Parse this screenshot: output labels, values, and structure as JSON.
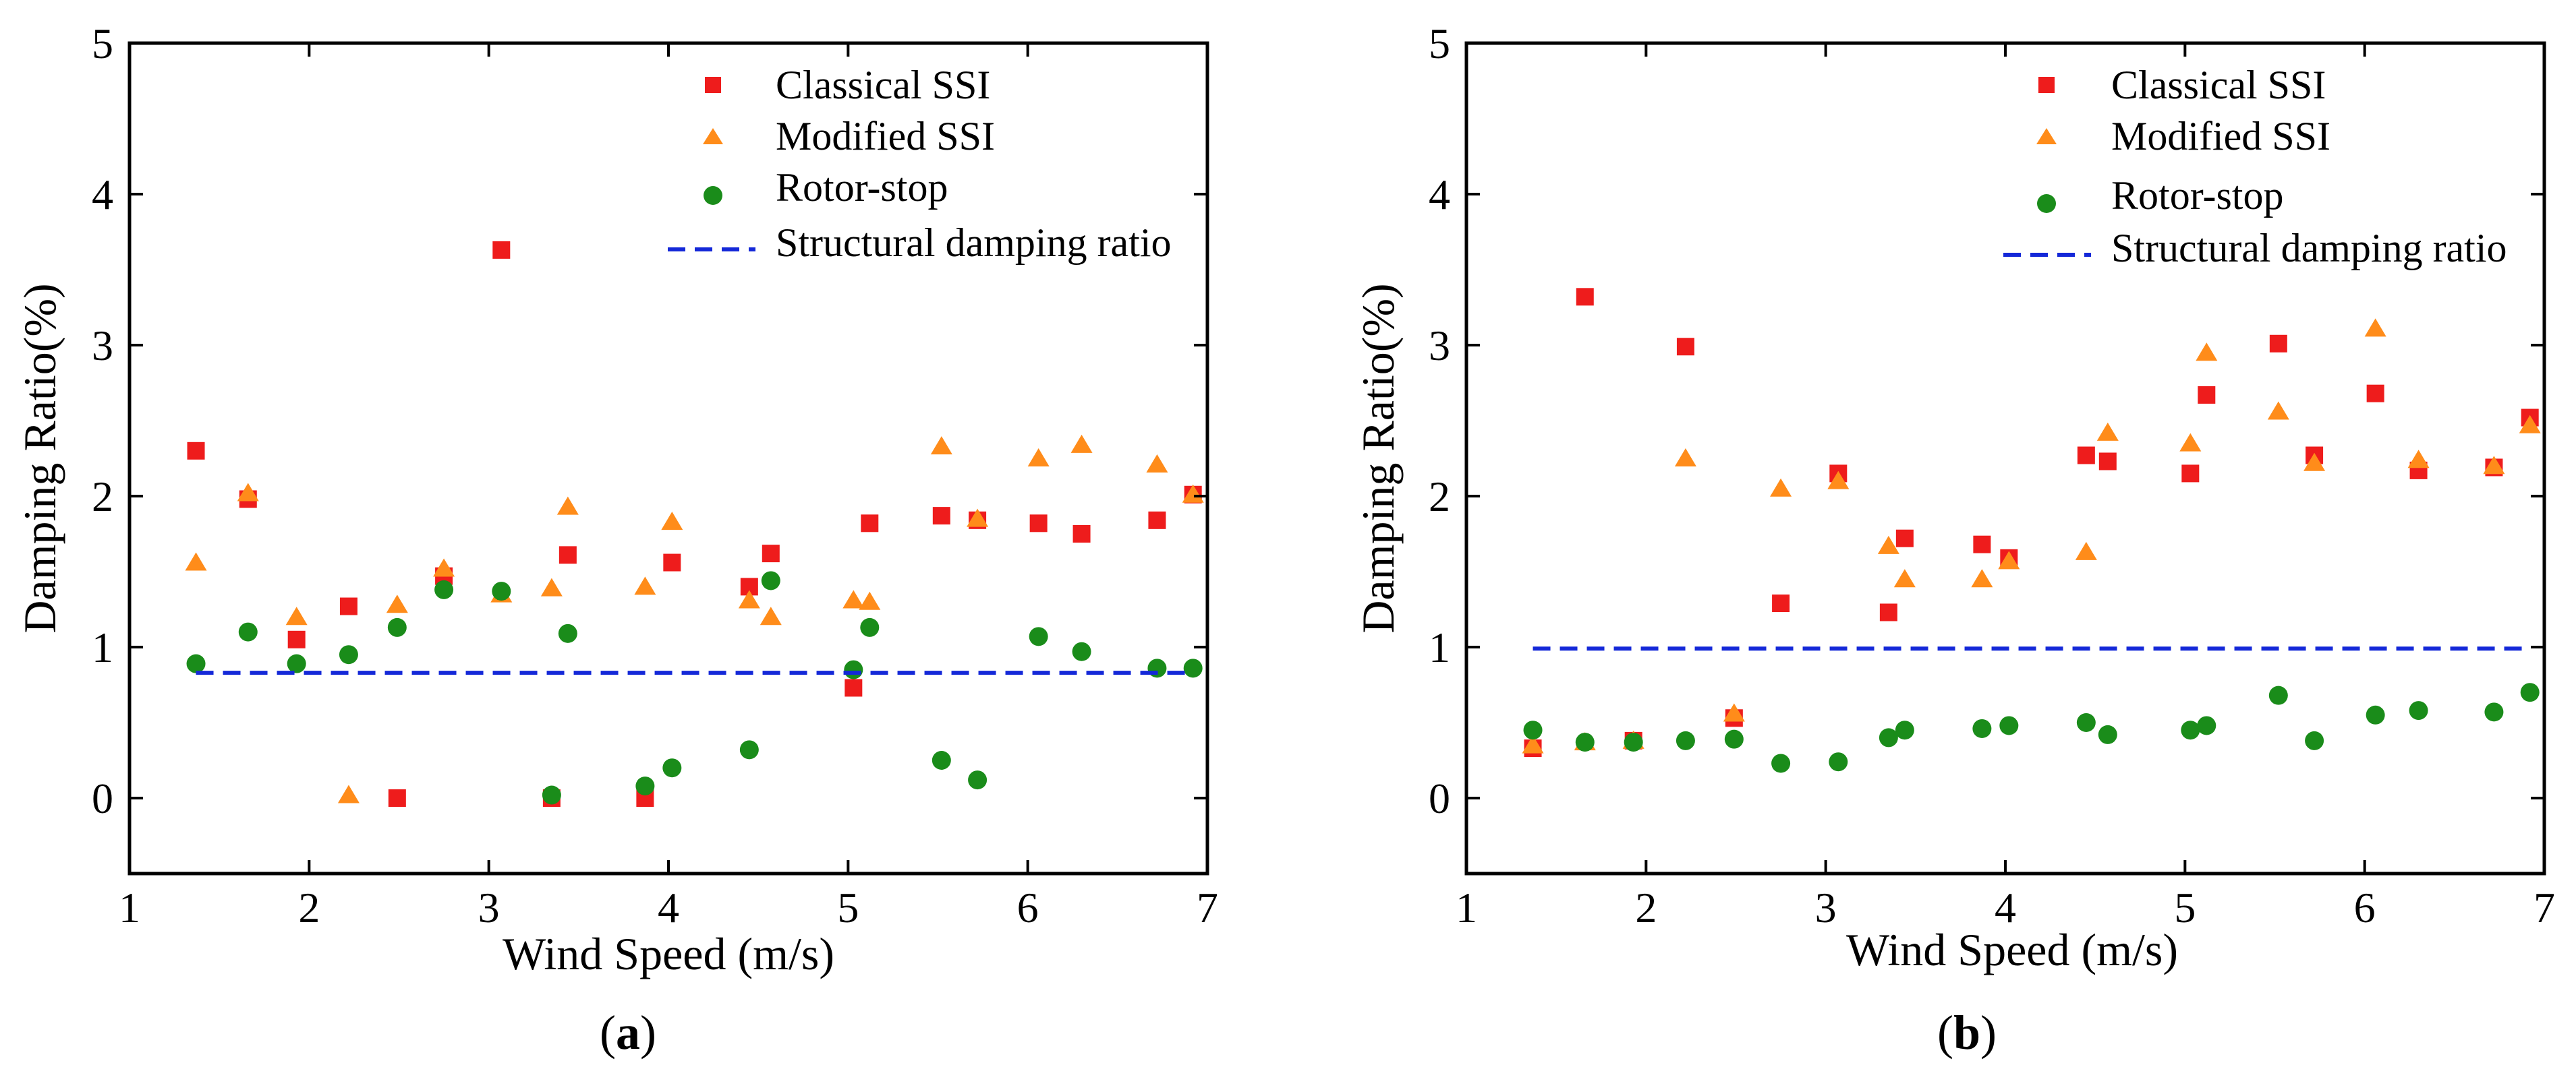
{
  "figure": {
    "panels": [
      "a",
      "b"
    ]
  },
  "colors": {
    "classical": "#ee1c1c",
    "modified": "#ff8c1a",
    "rotor": "#1a8c1a",
    "structural": "#1428d8"
  },
  "chart_data": [
    {
      "type": "scatter",
      "panel_label": "a",
      "panel_label_prefix": "(",
      "panel_label_suffix": ")",
      "xlabel": "Wind Speed (m/s)",
      "ylabel": "Damping Ratio(%)",
      "xlim": [
        1,
        7
      ],
      "ylim": [
        -0.5,
        5
      ],
      "xticks": [
        1,
        2,
        3,
        4,
        5,
        6,
        7
      ],
      "yticks": [
        0,
        1,
        2,
        3,
        4,
        5
      ],
      "legend": {
        "position": "top-right",
        "entries": [
          "Classical SSI",
          "Modified SSI",
          "Rotor-stop",
          "Structural damping ratio"
        ]
      },
      "series": [
        {
          "name": "Classical SSI",
          "marker": "square",
          "x": [
            1.37,
            1.66,
            1.93,
            2.22,
            2.49,
            2.75,
            3.07,
            3.35,
            3.44,
            3.87,
            4.02,
            4.45,
            4.57,
            5.03,
            5.12,
            5.52,
            5.72,
            6.06,
            6.3,
            6.72,
            6.92
          ],
          "y": [
            2.3,
            1.98,
            1.05,
            1.27,
            0.0,
            1.47,
            3.63,
            0.0,
            1.61,
            0.0,
            1.56,
            1.4,
            1.62,
            0.73,
            1.82,
            1.87,
            1.84,
            1.82,
            1.75,
            1.84,
            2.01
          ]
        },
        {
          "name": "Modified SSI",
          "marker": "triangle",
          "x": [
            1.37,
            1.66,
            1.93,
            2.22,
            2.49,
            2.75,
            3.07,
            3.35,
            3.44,
            3.87,
            4.02,
            4.45,
            4.57,
            5.03,
            5.12,
            5.52,
            5.72,
            6.06,
            6.3,
            6.72,
            6.92
          ],
          "y": [
            1.56,
            2.02,
            1.2,
            0.02,
            1.28,
            1.52,
            1.35,
            1.39,
            1.93,
            1.4,
            1.83,
            1.31,
            1.2,
            1.31,
            1.3,
            2.33,
            1.85,
            2.25,
            2.34,
            2.21,
            2.01
          ]
        },
        {
          "name": "Rotor-stop",
          "marker": "circle",
          "x": [
            1.37,
            1.66,
            1.93,
            2.22,
            2.49,
            2.75,
            3.07,
            3.35,
            3.44,
            3.87,
            4.02,
            4.45,
            4.57,
            5.03,
            5.12,
            5.52,
            5.72,
            6.06,
            6.3,
            6.72,
            6.92
          ],
          "y": [
            0.89,
            1.1,
            0.89,
            0.95,
            1.13,
            1.38,
            1.37,
            0.02,
            1.09,
            0.08,
            0.2,
            0.32,
            1.44,
            0.85,
            1.13,
            0.25,
            0.12,
            1.07,
            0.97,
            0.86,
            0.86
          ]
        },
        {
          "name": "Structural damping ratio",
          "marker": "dashed-line",
          "x": [
            1.37,
            6.92
          ],
          "y": [
            0.83,
            0.83
          ]
        }
      ]
    },
    {
      "type": "scatter",
      "panel_label": "b",
      "panel_label_prefix": "(",
      "panel_label_suffix": ")",
      "xlabel": "Wind Speed (m/s)",
      "ylabel": "Damping Ratio(%)",
      "xlim": [
        1,
        7
      ],
      "ylim": [
        -0.5,
        5
      ],
      "xticks": [
        1,
        2,
        3,
        4,
        5,
        6,
        7
      ],
      "yticks": [
        0,
        1,
        2,
        3,
        4,
        5
      ],
      "legend": {
        "position": "top-right",
        "entries": [
          "Classical SSI",
          "Modified SSI",
          "Rotor-stop",
          "Structural damping ratio"
        ]
      },
      "series": [
        {
          "name": "Classical SSI",
          "marker": "square",
          "x": [
            1.37,
            1.66,
            1.93,
            2.22,
            2.49,
            2.75,
            3.07,
            3.35,
            3.44,
            3.87,
            4.02,
            4.45,
            4.57,
            5.03,
            5.12,
            5.52,
            5.72,
            6.06,
            6.3,
            6.72,
            6.92
          ],
          "y": [
            0.33,
            3.32,
            0.38,
            2.99,
            0.53,
            1.29,
            2.15,
            1.23,
            1.72,
            1.68,
            1.59,
            2.27,
            2.23,
            2.15,
            2.67,
            3.01,
            2.27,
            2.68,
            2.17,
            2.19,
            2.52
          ]
        },
        {
          "name": "Modified SSI",
          "marker": "triangle",
          "x": [
            1.37,
            1.66,
            1.93,
            2.22,
            2.49,
            2.75,
            3.07,
            3.35,
            3.44,
            3.87,
            4.02,
            4.45,
            4.57,
            5.03,
            5.12,
            5.52,
            5.72,
            6.06,
            6.3,
            6.72,
            6.92
          ],
          "y": [
            0.35,
            0.37,
            0.38,
            2.25,
            0.56,
            2.05,
            2.1,
            1.67,
            1.45,
            1.45,
            1.57,
            1.63,
            2.42,
            2.35,
            2.95,
            2.56,
            2.22,
            3.11,
            2.24,
            2.2,
            2.47
          ]
        },
        {
          "name": "Rotor-stop",
          "marker": "circle",
          "x": [
            1.37,
            1.66,
            1.93,
            2.22,
            2.49,
            2.75,
            3.07,
            3.35,
            3.44,
            3.87,
            4.02,
            4.45,
            4.57,
            5.03,
            5.12,
            5.52,
            5.72,
            6.06,
            6.3,
            6.72,
            6.92
          ],
          "y": [
            0.45,
            0.37,
            0.37,
            0.38,
            0.39,
            0.23,
            0.24,
            0.4,
            0.45,
            0.46,
            0.48,
            0.5,
            0.42,
            0.45,
            0.48,
            0.68,
            0.38,
            0.55,
            0.58,
            0.57,
            0.7
          ]
        },
        {
          "name": "Structural damping ratio",
          "marker": "dashed-line",
          "x": [
            1.37,
            6.92
          ],
          "y": [
            0.99,
            0.99
          ]
        }
      ]
    }
  ]
}
